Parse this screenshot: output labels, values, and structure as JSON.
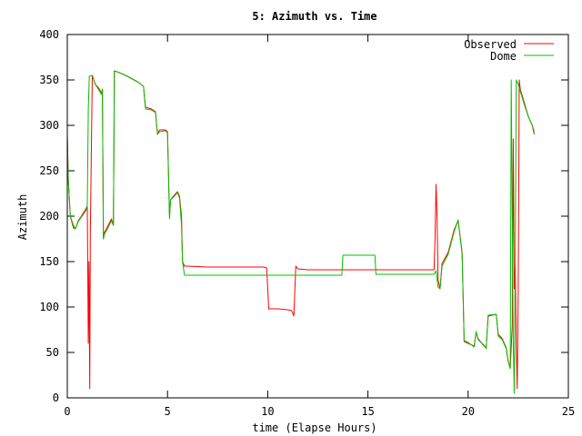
{
  "chart_data": {
    "type": "line",
    "title": "5: Azimuth vs. Time",
    "xlabel": "time (Elapse Hours)",
    "ylabel": "Azimuth",
    "xlim": [
      0,
      25
    ],
    "ylim": [
      0,
      400
    ],
    "xticks": [
      0,
      5,
      10,
      15,
      20,
      25
    ],
    "yticks": [
      0,
      50,
      100,
      150,
      200,
      250,
      300,
      350,
      400
    ],
    "grid": false,
    "legend_position": "top-right",
    "series": [
      {
        "name": "Observed",
        "color": "#ff0000",
        "points": [
          [
            0.0,
            290
          ],
          [
            0.05,
            240
          ],
          [
            0.15,
            200
          ],
          [
            0.3,
            190
          ],
          [
            0.4,
            186
          ],
          [
            0.55,
            195
          ],
          [
            0.7,
            200
          ],
          [
            0.9,
            207
          ],
          [
            1.0,
            211
          ],
          [
            1.05,
            60
          ],
          [
            1.08,
            150
          ],
          [
            1.12,
            10
          ],
          [
            1.15,
            180
          ],
          [
            1.2,
            270
          ],
          [
            1.25,
            355
          ],
          [
            1.4,
            345
          ],
          [
            1.6,
            340
          ],
          [
            1.7,
            335
          ],
          [
            1.75,
            340
          ],
          [
            1.8,
            175
          ],
          [
            1.85,
            182
          ],
          [
            2.0,
            188
          ],
          [
            2.2,
            197
          ],
          [
            2.3,
            190
          ],
          [
            2.35,
            360
          ],
          [
            2.6,
            358
          ],
          [
            3.0,
            354
          ],
          [
            3.5,
            348
          ],
          [
            3.8,
            343
          ],
          [
            3.9,
            320
          ],
          [
            4.2,
            318
          ],
          [
            4.4,
            315
          ],
          [
            4.5,
            290
          ],
          [
            4.6,
            295
          ],
          [
            4.9,
            295
          ],
          [
            5.0,
            293
          ],
          [
            5.1,
            200
          ],
          [
            5.15,
            218
          ],
          [
            5.3,
            222
          ],
          [
            5.5,
            227
          ],
          [
            5.6,
            222
          ],
          [
            5.7,
            200
          ],
          [
            5.75,
            150
          ],
          [
            5.85,
            145
          ],
          [
            6.0,
            145
          ],
          [
            7.0,
            144
          ],
          [
            8.0,
            144
          ],
          [
            9.0,
            144
          ],
          [
            9.8,
            144
          ],
          [
            9.95,
            143
          ],
          [
            10.05,
            98
          ],
          [
            10.5,
            98
          ],
          [
            11.0,
            97
          ],
          [
            11.2,
            96
          ],
          [
            11.3,
            90
          ],
          [
            11.4,
            145
          ],
          [
            11.5,
            142
          ],
          [
            12.0,
            141
          ],
          [
            13.0,
            141
          ],
          [
            14.0,
            141
          ],
          [
            15.0,
            141
          ],
          [
            16.0,
            141
          ],
          [
            17.0,
            141
          ],
          [
            18.0,
            141
          ],
          [
            18.3,
            141
          ],
          [
            18.35,
            175
          ],
          [
            18.4,
            235
          ],
          [
            18.45,
            200
          ],
          [
            18.5,
            130
          ],
          [
            18.6,
            120
          ],
          [
            18.7,
            148
          ],
          [
            19.0,
            160
          ],
          [
            19.3,
            185
          ],
          [
            19.5,
            195
          ],
          [
            19.7,
            160
          ],
          [
            19.8,
            62
          ],
          [
            20.0,
            60
          ],
          [
            20.3,
            57
          ],
          [
            20.4,
            72
          ],
          [
            20.5,
            65
          ],
          [
            20.8,
            57
          ],
          [
            20.9,
            55
          ],
          [
            21.0,
            90
          ],
          [
            21.4,
            92
          ],
          [
            21.5,
            70
          ],
          [
            21.7,
            65
          ],
          [
            21.9,
            55
          ],
          [
            22.0,
            40
          ],
          [
            22.1,
            33
          ],
          [
            22.2,
            80
          ],
          [
            22.25,
            285
          ],
          [
            22.3,
            120
          ],
          [
            22.35,
            145
          ],
          [
            22.4,
            60
          ],
          [
            22.45,
            10
          ],
          [
            22.5,
            120
          ],
          [
            22.55,
            350
          ],
          [
            22.6,
            340
          ],
          [
            22.8,
            325
          ],
          [
            23.0,
            310
          ],
          [
            23.2,
            300
          ],
          [
            23.3,
            290
          ]
        ]
      },
      {
        "name": "Dome",
        "color": "#00c000",
        "points": [
          [
            0.0,
            290
          ],
          [
            0.05,
            240
          ],
          [
            0.15,
            200
          ],
          [
            0.3,
            187
          ],
          [
            0.4,
            186
          ],
          [
            0.55,
            194
          ],
          [
            0.7,
            199
          ],
          [
            0.9,
            205
          ],
          [
            1.0,
            210
          ],
          [
            1.05,
            318
          ],
          [
            1.1,
            354
          ],
          [
            1.25,
            355
          ],
          [
            1.4,
            345
          ],
          [
            1.6,
            338
          ],
          [
            1.7,
            334
          ],
          [
            1.75,
            340
          ],
          [
            1.8,
            175
          ],
          [
            1.85,
            180
          ],
          [
            2.0,
            186
          ],
          [
            2.2,
            195
          ],
          [
            2.3,
            190
          ],
          [
            2.35,
            360
          ],
          [
            2.6,
            358
          ],
          [
            3.0,
            354
          ],
          [
            3.5,
            348
          ],
          [
            3.8,
            343
          ],
          [
            3.9,
            318
          ],
          [
            4.2,
            317
          ],
          [
            4.4,
            314
          ],
          [
            4.5,
            290
          ],
          [
            4.6,
            293
          ],
          [
            4.9,
            294
          ],
          [
            5.0,
            292
          ],
          [
            5.1,
            197
          ],
          [
            5.15,
            218
          ],
          [
            5.3,
            221
          ],
          [
            5.5,
            226
          ],
          [
            5.6,
            220
          ],
          [
            5.7,
            190
          ],
          [
            5.75,
            150
          ],
          [
            5.85,
            135
          ],
          [
            6.0,
            135
          ],
          [
            8.0,
            135
          ],
          [
            10.0,
            135
          ],
          [
            12.0,
            135
          ],
          [
            13.7,
            135
          ],
          [
            13.75,
            157
          ],
          [
            15.0,
            157
          ],
          [
            15.35,
            157
          ],
          [
            15.4,
            136
          ],
          [
            17.0,
            136
          ],
          [
            18.3,
            136
          ],
          [
            18.4,
            140
          ],
          [
            18.5,
            122
          ],
          [
            18.6,
            120
          ],
          [
            18.7,
            145
          ],
          [
            19.0,
            158
          ],
          [
            19.3,
            183
          ],
          [
            19.5,
            196
          ],
          [
            19.7,
            158
          ],
          [
            19.8,
            63
          ],
          [
            20.0,
            61
          ],
          [
            20.3,
            56
          ],
          [
            20.4,
            73
          ],
          [
            20.5,
            64
          ],
          [
            20.8,
            58
          ],
          [
            20.9,
            54
          ],
          [
            21.0,
            91
          ],
          [
            21.4,
            92
          ],
          [
            21.5,
            68
          ],
          [
            21.7,
            64
          ],
          [
            21.9,
            54
          ],
          [
            22.0,
            40
          ],
          [
            22.1,
            32
          ],
          [
            22.15,
            350
          ],
          [
            22.2,
            200
          ],
          [
            22.25,
            60
          ],
          [
            22.3,
            5
          ],
          [
            22.35,
            150
          ],
          [
            22.4,
            350
          ],
          [
            22.5,
            345
          ],
          [
            22.8,
            323
          ],
          [
            23.0,
            310
          ],
          [
            23.2,
            300
          ],
          [
            23.3,
            293
          ]
        ]
      }
    ]
  }
}
